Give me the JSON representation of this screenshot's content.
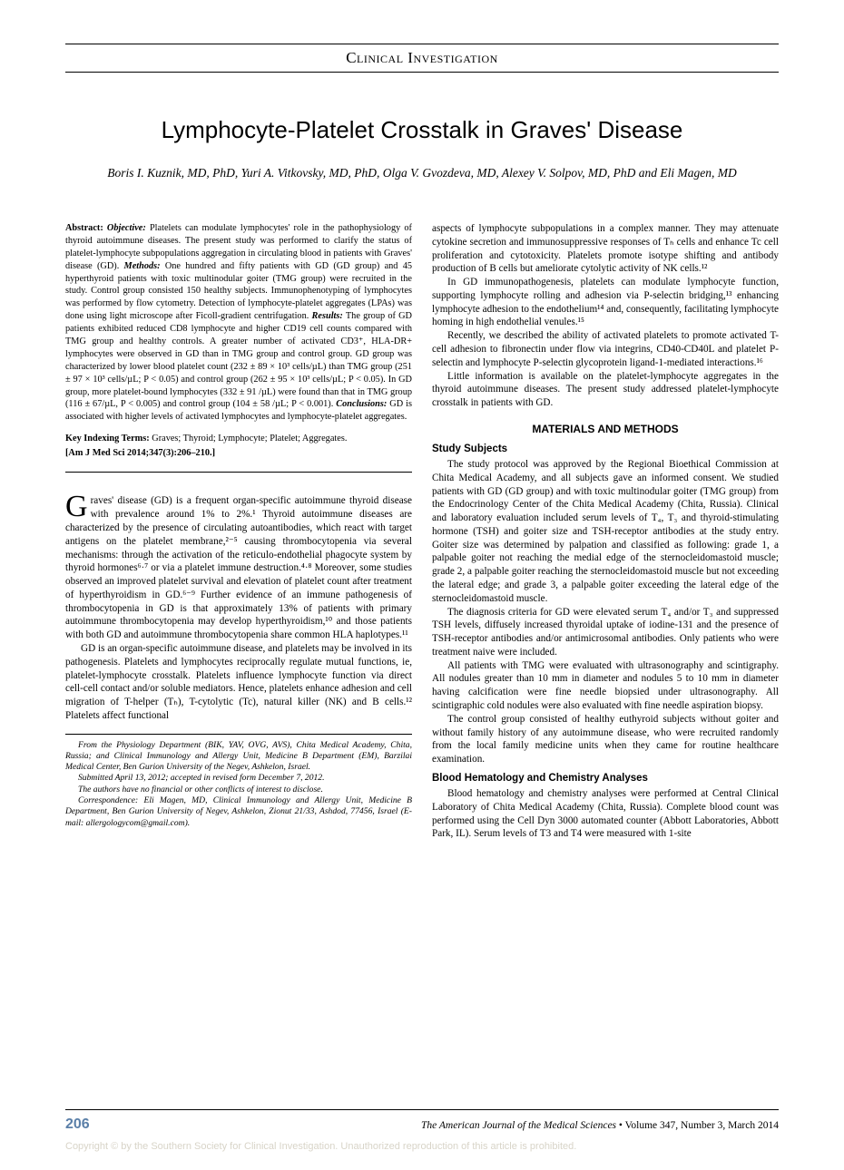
{
  "section_header": "Clinical Investigation",
  "title": "Lymphocyte-Platelet Crosstalk in Graves' Disease",
  "authors": "Boris I. Kuznik, MD, PhD, Yuri A. Vitkovsky, MD, PhD, Olga V. Gvozdeva, MD, Alexey V. Solpov, MD, PhD and Eli Magen, MD",
  "abstract_label": "Abstract:",
  "abstract_obj_label": "Objective:",
  "abstract_obj": " Platelets can modulate lymphocytes' role in the pathophysiology of thyroid autoimmune diseases. The present study was performed to clarify the status of platelet-lymphocyte subpopulations aggregation in circulating blood in patients with Graves' disease (GD). ",
  "abstract_meth_label": "Methods:",
  "abstract_meth": " One hundred and fifty patients with GD (GD group) and 45 hyperthyroid patients with toxic multinodular goiter (TMG group) were recruited in the study. Control group consisted 150 healthy subjects. Immunophenotyping of lymphocytes was performed by flow cytometry. Detection of lymphocyte-platelet aggregates (LPAs) was done using light microscope after Ficoll-gradient centrifugation. ",
  "abstract_res_label": "Results:",
  "abstract_res": " The group of GD patients exhibited reduced CD8 lymphocyte and higher CD19 cell counts compared with TMG group and healthy controls. A greater number of activated CD3⁺, HLA-DR+ lymphocytes were observed in GD than in TMG group and control group. GD group was characterized by lower blood platelet count (232 ± 89 × 10³ cells/µL) than TMG group (251 ± 97 × 10³ cells/µL; P < 0.05) and control group (262 ± 95 × 10³ cells/µL; P < 0.05). In GD group, more platelet-bound lymphocytes (332 ± 91 /µL) were found than that in TMG group (116 ± 67/µL, P < 0.005) and control group (104 ± 58 /µL; P < 0.001). ",
  "abstract_conc_label": "Conclusions:",
  "abstract_conc": " GD is associated with higher levels of activated lymphocytes and lymphocyte-platelet aggregates.",
  "key_terms_label": "Key Indexing Terms:",
  "key_terms": " Graves; Thyroid; Lymphocyte; Platelet; Aggregates.",
  "citation": "[Am J Med Sci 2014;347(3):206–210.]",
  "intro": {
    "dropcap": "G",
    "p1_tail": "raves' disease (GD) is a frequent organ-specific autoimmune thyroid disease with prevalence around 1% to 2%.¹ Thyroid autoimmune diseases are characterized by the presence of circulating autoantibodies, which react with target antigens on the platelet membrane,²⁻⁵ causing thrombocytopenia via several mechanisms: through the activation of the reticulo-endothelial phagocyte system by thyroid hormones⁶·⁷ or via a platelet immune destruction.⁴·⁸ Moreover, some studies observed an improved platelet survival and elevation of platelet count after treatment of hyperthyroidism in GD.⁶⁻⁹ Further evidence of an immune pathogenesis of thrombocytopenia in GD is that approximately 13% of patients with primary autoimmune thrombocytopenia may develop hyperthyroidism,¹⁰ and those patients with both GD and autoimmune thrombocytopenia share common HLA haplotypes.¹¹",
    "p2": "GD is an organ-specific autoimmune disease, and platelets may be involved in its pathogenesis. Platelets and lymphocytes reciprocally regulate mutual functions, ie, platelet-lymphocyte crosstalk. Platelets influence lymphocyte function via direct cell-cell contact and/or soluble mediators. Hence, platelets enhance adhesion and cell migration of T-helper (Tₕ), T-cytolytic (Tc), natural killer (NK) and B cells.¹² Platelets affect functional",
    "p3": "aspects of lymphocyte subpopulations in a complex manner. They may attenuate cytokine secretion and immunosuppressive responses of Tₕ cells and enhance Tc cell proliferation and cytotoxicity. Platelets promote isotype shifting and antibody production of B cells but ameliorate cytolytic activity of NK cells.¹²",
    "p4": "In GD immunopathogenesis, platelets can modulate lymphocyte function, supporting lymphocyte rolling and adhesion via P-selectin bridging,¹³ enhancing lymphocyte adhesion to the endothelium¹⁴ and, consequently, facilitating lymphocyte homing in high endothelial venules.¹⁵",
    "p5": "Recently, we described the ability of activated platelets to promote activated T-cell adhesion to fibronectin under flow via integrins, CD40-CD40L and platelet P-selectin and lymphocyte P-selectin glycoprotein ligand-1-mediated interactions.¹⁶",
    "p6": "Little information is available on the platelet-lymphocyte aggregates in the thyroid autoimmune diseases. The present study addressed platelet-lymphocyte crosstalk in patients with GD."
  },
  "methods_heading": "MATERIALS AND METHODS",
  "study_subjects_h": "Study Subjects",
  "study_subjects_p1": "The study protocol was approved by the Regional Bioethical Commission at Chita Medical Academy, and all subjects gave an informed consent. We studied patients with GD (GD group) and with toxic multinodular goiter (TMG group) from the Endocrinology Center of the Chita Medical Academy (Chita, Russia). Clinical and laboratory evaluation included serum levels of T₄, T₃ and thyroid-stimulating hormone (TSH) and goiter size and TSH-receptor antibodies at the study entry. Goiter size was determined by palpation and classified as following: grade 1, a palpable goiter not reaching the medial edge of the sternocleidomastoid muscle; grade 2, a palpable goiter reaching the sternocleidomastoid muscle but not exceeding the lateral edge; and grade 3, a palpable goiter exceeding the lateral edge of the sternocleidomastoid muscle.",
  "study_subjects_p2": "The diagnosis criteria for GD were elevated serum T₄ and/or T₃ and suppressed TSH levels, diffusely increased thyroidal uptake of iodine-131 and the presence of TSH-receptor antibodies and/or antimicrosomal antibodies. Only patients who were treatment naive were included.",
  "study_subjects_p3": "All patients with TMG were evaluated with ultrasonography and scintigraphy. All nodules greater than 10 mm in diameter and nodules 5 to 10 mm in diameter having calcification were fine needle biopsied under ultrasonography. All scintigraphic cold nodules were also evaluated with fine needle aspiration biopsy.",
  "study_subjects_p4": "The control group consisted of healthy euthyroid subjects without goiter and without family history of any autoimmune disease, who were recruited randomly from the local family medicine units when they came for routine healthcare examination.",
  "blood_h": "Blood Hematology and Chemistry Analyses",
  "blood_p": "Blood hematology and chemistry analyses were performed at Central Clinical Laboratory of Chita Medical Academy (Chita, Russia). Complete blood count was performed using the Cell Dyn 3000 automated counter (Abbott Laboratories, Abbott Park, IL). Serum levels of T3 and T4 were measured with 1-site",
  "affiliations": "From the Physiology Department (BIK, YAV, OVG, AVS), Chita Medical Academy, Chita, Russia; and Clinical Immunology and Allergy Unit, Medicine B Department (EM), Barzilai Medical Center, Ben Gurion University of the Negev, Ashkelon, Israel.",
  "submission": "Submitted April 13, 2012; accepted in revised form December 7, 2012.",
  "conflict": "The authors have no financial or other conflicts of interest to disclose.",
  "correspondence": "Correspondence: Eli Magen, MD, Clinical Immunology and Allergy Unit, Medicine B Department, Ben Gurion University of Negev, Ashkelon, Zionut 21/33, Ashdod, 77456, Israel (E-mail: allergologycom@gmail.com).",
  "page_number": "206",
  "journal_name": "The American Journal of the Medical Sciences",
  "journal_issue": " • Volume 347, Number 3, March 2014",
  "copyright": "Copyright © by the Southern Society for Clinical Investigation. Unauthorized reproduction of this article is prohibited."
}
